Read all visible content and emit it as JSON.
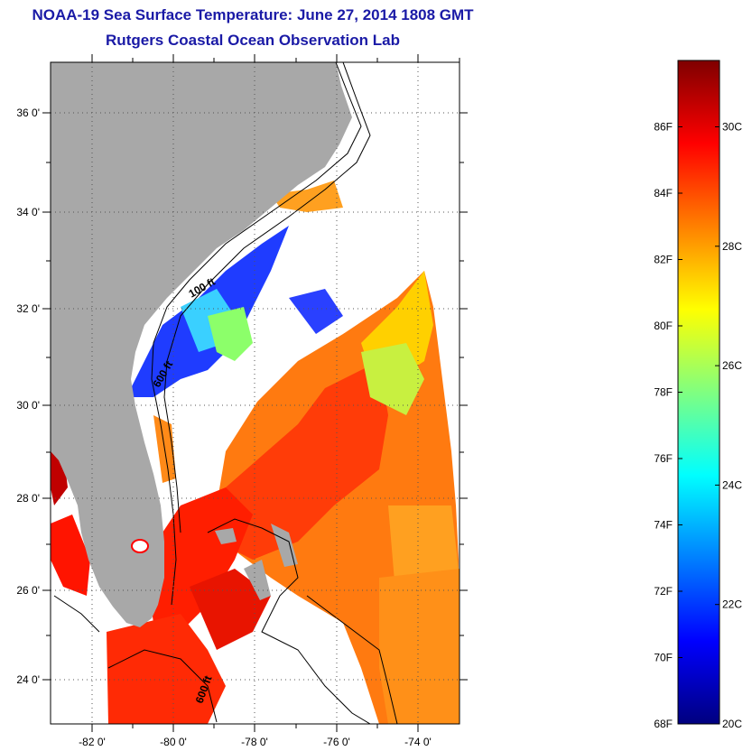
{
  "title": "NOAA-19 Sea Surface Temperature:  June 27, 2014 1808 GMT",
  "subtitle": "Rutgers Coastal Ocean Observation Lab",
  "chart_data": {
    "type": "heatmap",
    "x_ticks": [
      "-82 0'",
      "-80 0'",
      "-78 0'",
      "-76 0'",
      "-74 0'"
    ],
    "y_ticks": [
      "36 0'",
      "34 0'",
      "32 0'",
      "30 0'",
      "28 0'",
      "26 0'",
      "24 0'"
    ],
    "xlim": [
      -83,
      -73
    ],
    "ylim": [
      23,
      37
    ],
    "grid": true,
    "contour_labels": [
      "100 ft",
      "600 ft",
      "600 ft"
    ],
    "colorbar": {
      "range_f": [
        68,
        88
      ],
      "range_c": [
        20,
        31
      ],
      "fahrenheit_labels": [
        "86F",
        "84F",
        "82F",
        "80F",
        "78F",
        "76F",
        "74F",
        "72F",
        "70F",
        "68F"
      ],
      "celsius_labels": [
        "30C",
        "28C",
        "26C",
        "24C",
        "22C",
        "20C"
      ],
      "colors": [
        "#00007f",
        "#0000ff",
        "#0080ff",
        "#00ffff",
        "#80ff80",
        "#ffff00",
        "#ff8000",
        "#ff0000",
        "#7f0000"
      ]
    },
    "land_color": "#a8a8a8"
  }
}
